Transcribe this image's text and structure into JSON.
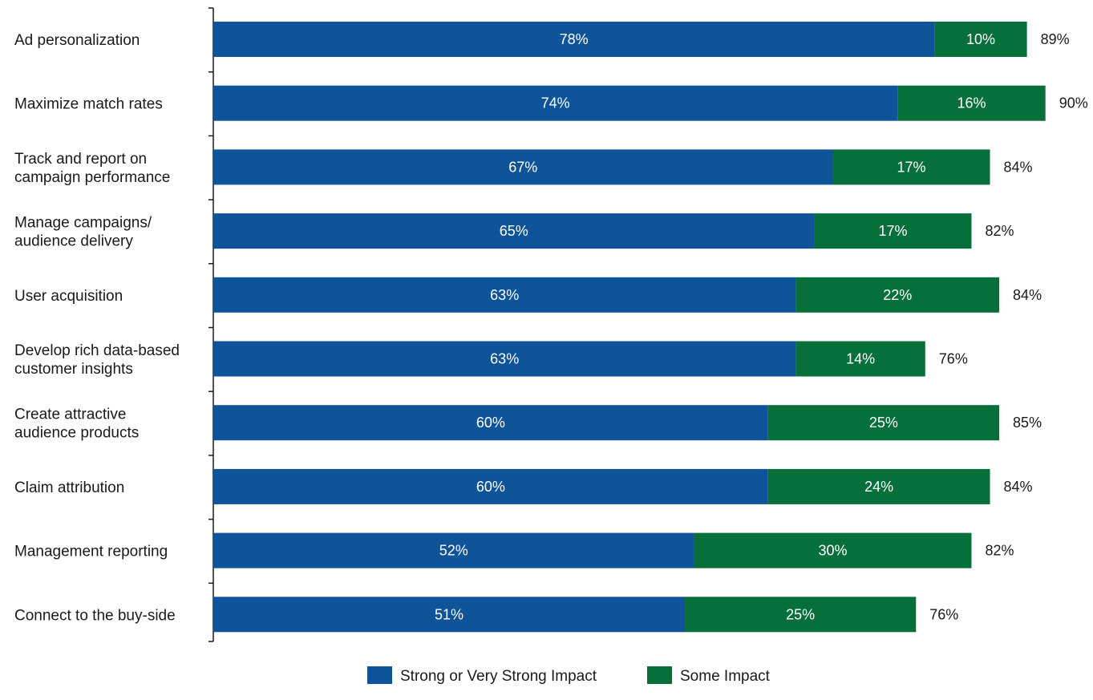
{
  "chart_data": {
    "type": "bar",
    "orientation": "horizontal",
    "stacked": true,
    "categories": [
      "Ad personalization",
      "Maximize match rates",
      "Track and report on campaign performance",
      "Manage campaigns/ audience delivery",
      "User acquisition",
      "Develop rich data-based customer insights",
      "Create attractive audience products",
      "Claim attribution",
      "Management reporting",
      "Connect to the buy-side"
    ],
    "category_lines": [
      [
        "Ad personalization"
      ],
      [
        "Maximize match rates"
      ],
      [
        "Track and report on",
        "campaign performance"
      ],
      [
        "Manage campaigns/",
        "audience delivery"
      ],
      [
        "User acquisition"
      ],
      [
        "Develop rich data-based",
        "customer insights"
      ],
      [
        "Create attractive",
        "audience products"
      ],
      [
        "Claim attribution"
      ],
      [
        "Management reporting"
      ],
      [
        "Connect to the buy-side"
      ]
    ],
    "series": [
      {
        "name": "Strong or Very Strong Impact",
        "color": "#0f5499",
        "values": [
          78,
          74,
          67,
          65,
          63,
          63,
          60,
          60,
          52,
          51
        ]
      },
      {
        "name": "Some Impact",
        "color": "#07703a",
        "values": [
          10,
          16,
          17,
          17,
          22,
          14,
          25,
          24,
          30,
          25
        ]
      }
    ],
    "totals": [
      89,
      90,
      84,
      82,
      84,
      76,
      85,
      84,
      82,
      76
    ],
    "value_suffix": "%",
    "xlim": [
      0,
      100
    ],
    "grid": false,
    "legend_position": "bottom-center",
    "title": "",
    "xlabel": "",
    "ylabel": ""
  }
}
